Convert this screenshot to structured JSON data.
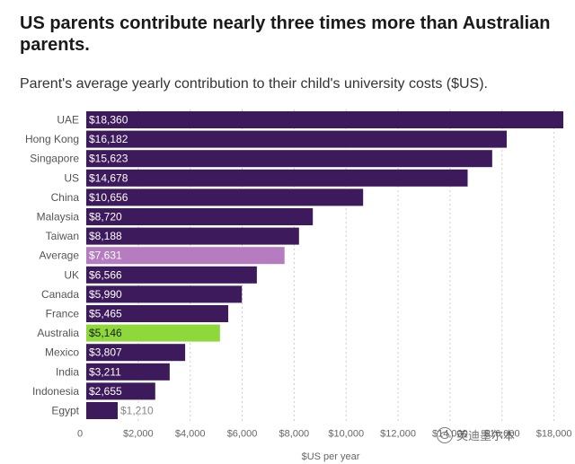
{
  "chart_data": {
    "type": "bar",
    "orientation": "horizontal",
    "title": "US parents contribute nearly three times more than Australian parents.",
    "subtitle": "Parent's average yearly contribution to their child's university costs ($US).",
    "xlabel": "$US per year",
    "categories": [
      "UAE",
      "Hong Kong",
      "Singapore",
      "US",
      "China",
      "Malaysia",
      "Taiwan",
      "Average",
      "UK",
      "Canada",
      "France",
      "Australia",
      "Mexico",
      "India",
      "Indonesia",
      "Egypt"
    ],
    "values": [
      18360,
      16182,
      15623,
      14678,
      10656,
      8720,
      8188,
      7631,
      6566,
      5990,
      5465,
      5146,
      3807,
      3211,
      2655,
      1210
    ],
    "value_labels": [
      "$18,360",
      "$16,182",
      "$15,623",
      "$14,678",
      "$10,656",
      "$8,720",
      "$8,188",
      "$7,631",
      "$6,566",
      "$5,990",
      "$5,465",
      "$5,146",
      "$3,807",
      "$3,211",
      "$2,655",
      "$1,210"
    ],
    "bar_colors": [
      "#3d1a5c",
      "#3d1a5c",
      "#3d1a5c",
      "#3d1a5c",
      "#3d1a5c",
      "#3d1a5c",
      "#3d1a5c",
      "#b57cbf",
      "#3d1a5c",
      "#3d1a5c",
      "#3d1a5c",
      "#8ed83b",
      "#3d1a5c",
      "#3d1a5c",
      "#3d1a5c",
      "#3d1a5c"
    ],
    "xlim": [
      0,
      18360
    ],
    "xticks": [
      0,
      2000,
      4000,
      6000,
      8000,
      10000,
      12000,
      14000,
      16000,
      18000
    ],
    "xtick_labels": [
      "0",
      "$2,000",
      "$4,000",
      "$6,000",
      "$8,000",
      "$10,000",
      "$12,000",
      "$14,000",
      "$16,000",
      "$18,000"
    ],
    "grid": "vertical-dashed"
  },
  "watermark": {
    "icon": "wechat-icon",
    "text": "英迪墨尔本"
  }
}
